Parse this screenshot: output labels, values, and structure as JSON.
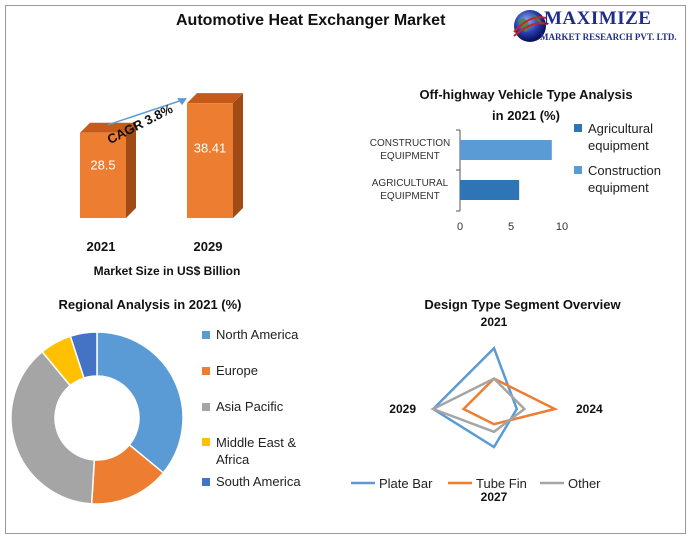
{
  "header": {
    "title": "Automotive Heat Exchanger Market",
    "logo_line1": "MAXIMIZE",
    "logo_line2": "MARKET RESEARCH PVT. LTD."
  },
  "colors": {
    "orange": "#ed7d31",
    "blue": "#5b9bd5",
    "dark_blue": "#2e75b6",
    "gray": "#a5a5a5",
    "yellow": "#ffc000",
    "navy": "#4472c4"
  },
  "chart_data": [
    {
      "type": "bar",
      "categories": [
        "2021",
        "2029"
      ],
      "values": [
        28.5,
        38.41
      ],
      "xlabel": "Market Size in US$ Billion",
      "annotation": "CAGR 3.8%"
    },
    {
      "type": "bar",
      "orientation": "horizontal",
      "title": "Off-highway Vehicle Type Analysis in 2021 (%)",
      "title_line1": "Off-highway Vehicle Type Analysis",
      "title_line2": "in 2021 (%)",
      "categories": [
        "CONSTRUCTION EQUIPMENT",
        "AGRICULTURAL EQUIPMENT"
      ],
      "category_lines": [
        [
          "CONSTRUCTION",
          "EQUIPMENT"
        ],
        [
          "AGRICULTURAL",
          "EQUIPMENT"
        ]
      ],
      "series": [
        {
          "name": "Agricultural equipment",
          "values": [
            null,
            5.8
          ]
        },
        {
          "name": "Construction equipment",
          "values": [
            9,
            null
          ]
        }
      ],
      "legend": [
        "Agricultural equipment",
        "Construction equipment"
      ],
      "legend_lines": [
        [
          "Agricultural",
          "equipment"
        ],
        [
          "Construction",
          "equipment"
        ]
      ],
      "xticks": [
        "0",
        "5",
        "10"
      ],
      "xlim": [
        0,
        10
      ]
    },
    {
      "type": "pie",
      "donut": true,
      "title": "Regional Analysis in 2021 (%)",
      "labels": [
        "North America",
        "Europe",
        "Asia Pacific",
        "Middle East & Africa",
        "South America"
      ],
      "legend_lines": [
        [
          "North America"
        ],
        [
          "Europe"
        ],
        [
          "Asia Pacific"
        ],
        [
          "Middle East &",
          "Africa"
        ],
        [
          "South America"
        ]
      ],
      "values": [
        36,
        15,
        38,
        6,
        5
      ]
    },
    {
      "type": "radar",
      "title": "Design Type Segment Overview",
      "axes": [
        "2021",
        "2024",
        "2027",
        "2029"
      ],
      "series": [
        {
          "name": "Plate Bar",
          "values": [
            8,
            3,
            5,
            8
          ]
        },
        {
          "name": "Tube Fin",
          "values": [
            4,
            8,
            2,
            4
          ]
        },
        {
          "name": "Other",
          "values": [
            4,
            4,
            3,
            8
          ]
        }
      ],
      "range": [
        0,
        10
      ]
    }
  ]
}
